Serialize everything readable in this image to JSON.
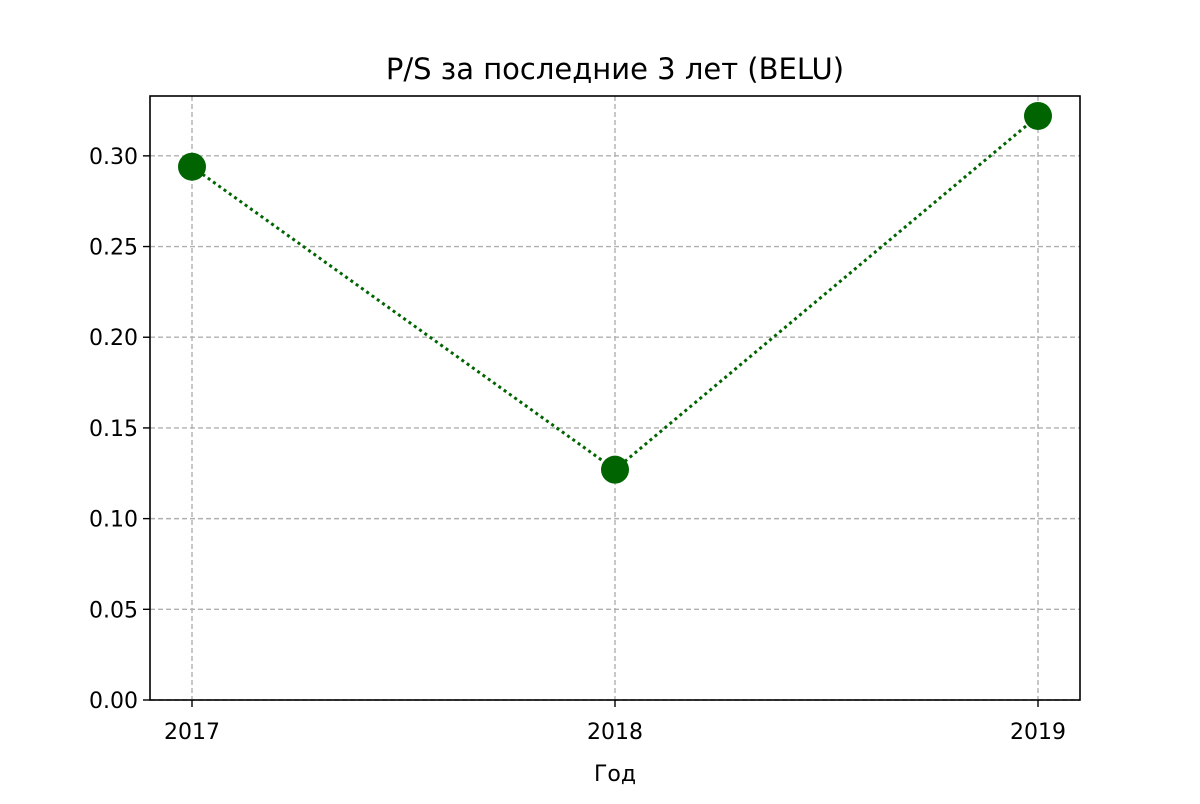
{
  "chart_data": {
    "type": "line",
    "title": "P/S за последние 3 лет (BELU)",
    "xlabel": "Год",
    "ylabel": "",
    "x": [
      "2017",
      "2018",
      "2019"
    ],
    "series": [
      {
        "values": [
          0.294,
          0.127,
          0.322
        ],
        "color": "#006400",
        "line_style": "dotted",
        "marker": "circle"
      }
    ],
    "ylim": [
      0,
      0.333
    ],
    "yticks": [
      "0.00",
      "0.05",
      "0.10",
      "0.15",
      "0.20",
      "0.25",
      "0.30"
    ],
    "grid": true,
    "grid_color": "#b0b0b0",
    "legend": false
  }
}
